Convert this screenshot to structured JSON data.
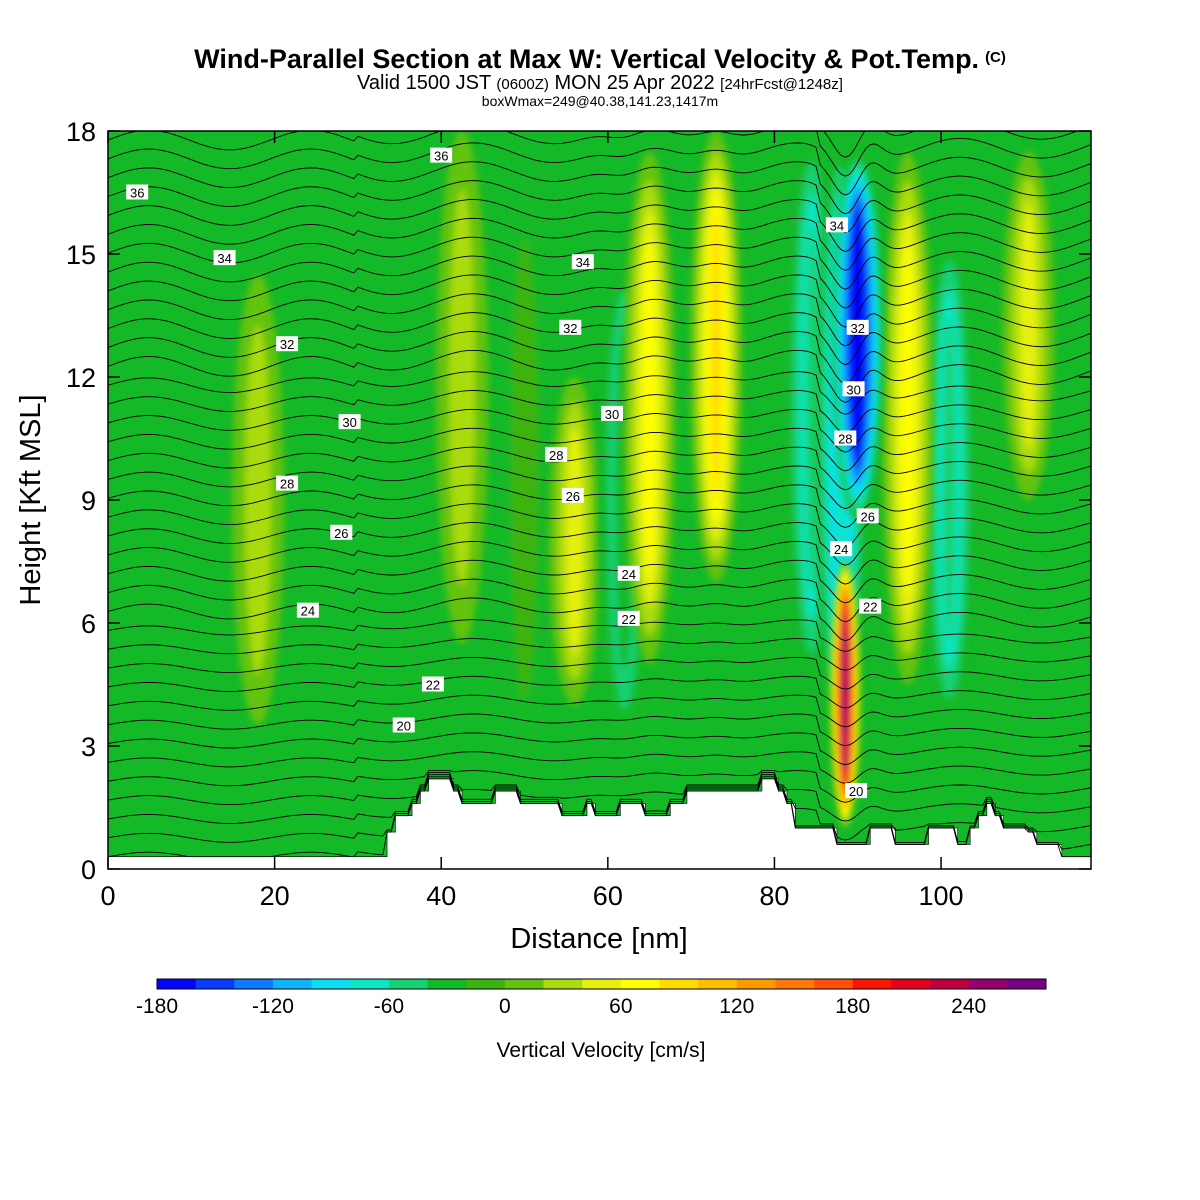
{
  "header": {
    "title": "Wind-Parallel Section at Max W: Vertical Velocity & Pot.Temp.",
    "title_mark": "(C)",
    "valid_main": "Valid 1500 JST",
    "valid_utc": "(0600Z)",
    "valid_date": "MON 25 Apr 2022",
    "forecast": "[24hrFcst@1248z]",
    "boxw": "boxWmax=249@40.38,141.23,1417m"
  },
  "colorbar": {
    "label": "Vertical Velocity [cm/s]",
    "ticks": [
      "-180",
      "-120",
      "-60",
      "0",
      "60",
      "120",
      "180",
      "240"
    ],
    "levels": [
      -180,
      -160,
      -140,
      -120,
      -100,
      -80,
      -60,
      -40,
      -20,
      0,
      20,
      40,
      60,
      80,
      100,
      120,
      140,
      160,
      180,
      200,
      220,
      240,
      260,
      280
    ],
    "colors": [
      "#0505ff",
      "#0a3cff",
      "#0f78ff",
      "#0fb4ff",
      "#0fdcf5",
      "#0fe6c3",
      "#14d273",
      "#14b928",
      "#3cb40f",
      "#64c30f",
      "#aadc0f",
      "#e6f00f",
      "#ffff00",
      "#ffdc00",
      "#ffbe00",
      "#ff9b00",
      "#ff780a",
      "#ff5005",
      "#ff1400",
      "#e6001e",
      "#be003c",
      "#96006e",
      "#780087"
    ]
  },
  "chart_data": {
    "type": "heatmap",
    "title": "Wind-Parallel Section at Max W: Vertical Velocity & Pot.Temp.",
    "xlabel": "Distance [nm]",
    "ylabel": "Height [Kft MSL]",
    "xlim": [
      0,
      118
    ],
    "ylim": [
      0,
      18
    ],
    "xticks": [
      "0",
      "20",
      "40",
      "60",
      "80",
      "100"
    ],
    "yticks": [
      "0",
      "3",
      "6",
      "9",
      "12",
      "15",
      "18"
    ],
    "fill_variable": "Vertical Velocity [cm/s]",
    "contour_variable": "Potential temperature",
    "contour_levels": [
      20,
      22,
      24,
      26,
      28,
      30,
      32,
      34,
      36
    ],
    "max_w": 249,
    "w_features": [
      {
        "x": 88.5,
        "w": 249,
        "base": 1.0,
        "top": 7.5,
        "kind": "updraft"
      },
      {
        "x": 90.0,
        "w": -180,
        "base": 8.5,
        "top": 17.5,
        "kind": "downdraft"
      },
      {
        "x": 88.0,
        "w": -80,
        "base": 3.0,
        "top": 17.8,
        "kind": "downdraft"
      },
      {
        "x": 84.5,
        "w": -60,
        "base": 4.5,
        "top": 18,
        "kind": "downdraft"
      },
      {
        "x": 101.0,
        "w": -60,
        "base": 3.5,
        "top": 15.5,
        "kind": "downdraft"
      },
      {
        "x": 73.0,
        "w": 80,
        "base": 7.0,
        "top": 18,
        "kind": "updraft"
      },
      {
        "x": 65.0,
        "w": 60,
        "base": 5.0,
        "top": 17.5,
        "kind": "updraft"
      },
      {
        "x": 96.0,
        "w": 60,
        "base": 4.5,
        "top": 17.5,
        "kind": "updraft"
      },
      {
        "x": 56.0,
        "w": 40,
        "base": 4.0,
        "top": 12.0,
        "kind": "updraft"
      },
      {
        "x": 62.0,
        "w": -40,
        "base": 3.0,
        "top": 15.0,
        "kind": "downdraft"
      },
      {
        "x": 110.5,
        "w": 40,
        "base": 9.0,
        "top": 17.5,
        "kind": "updraft"
      },
      {
        "x": 107.0,
        "w": -25,
        "base": 2.0,
        "top": 16.0,
        "kind": "downdraft"
      },
      {
        "x": 42.5,
        "w": 20,
        "base": 5.5,
        "top": 18,
        "kind": "updraft"
      },
      {
        "x": 18.0,
        "w": 20,
        "base": 3.5,
        "top": 14.5,
        "kind": "updraft"
      },
      {
        "x": 50.0,
        "w": -20,
        "base": 2.5,
        "top": 17.0,
        "kind": "downdraft"
      }
    ],
    "contour_labels": [
      {
        "value": 36,
        "x": 3.5,
        "y": 16.5
      },
      {
        "value": 36,
        "x": 40.0,
        "y": 17.4
      },
      {
        "value": 34,
        "x": 14.0,
        "y": 14.9
      },
      {
        "value": 34,
        "x": 57.0,
        "y": 14.8
      },
      {
        "value": 34,
        "x": 87.5,
        "y": 15.7
      },
      {
        "value": 32,
        "x": 21.5,
        "y": 12.8
      },
      {
        "value": 32,
        "x": 55.5,
        "y": 13.2
      },
      {
        "value": 32,
        "x": 90.0,
        "y": 13.2
      },
      {
        "value": 30,
        "x": 29.0,
        "y": 10.9
      },
      {
        "value": 30,
        "x": 60.5,
        "y": 11.1
      },
      {
        "value": 30,
        "x": 89.5,
        "y": 11.7
      },
      {
        "value": 28,
        "x": 21.5,
        "y": 9.4
      },
      {
        "value": 28,
        "x": 53.8,
        "y": 10.1
      },
      {
        "value": 28,
        "x": 88.5,
        "y": 10.5
      },
      {
        "value": 26,
        "x": 28.0,
        "y": 8.2
      },
      {
        "value": 26,
        "x": 55.8,
        "y": 9.1
      },
      {
        "value": 26,
        "x": 91.2,
        "y": 8.6
      },
      {
        "value": 24,
        "x": 24.0,
        "y": 6.3
      },
      {
        "value": 24,
        "x": 62.5,
        "y": 7.2
      },
      {
        "value": 24,
        "x": 88.0,
        "y": 7.8
      },
      {
        "value": 22,
        "x": 39.0,
        "y": 4.5
      },
      {
        "value": 22,
        "x": 62.5,
        "y": 6.1
      },
      {
        "value": 22,
        "x": 91.5,
        "y": 6.4
      },
      {
        "value": 20,
        "x": 35.5,
        "y": 3.5
      },
      {
        "value": 20,
        "x": 89.8,
        "y": 1.9
      }
    ],
    "terrain": {
      "x": [
        0,
        32.5,
        33.5,
        34.5,
        36.5,
        37.5,
        38.5,
        40.5,
        41.5,
        42.5,
        45.5,
        46.5,
        48.5,
        49.5,
        53.5,
        54.5,
        55.5,
        57.5,
        58.5,
        60.5,
        61.5,
        63.5,
        64.5,
        65.5,
        67.5,
        68.5,
        69.5,
        73.5,
        75.5,
        77.5,
        78.5,
        79.5,
        80.5,
        81.5,
        82.5,
        87.5,
        87.8,
        89.2,
        90.5,
        91.5,
        93.0,
        94.5,
        98.5,
        100.5,
        102.0,
        103.5,
        104.5,
        105.5,
        106.5,
        107.5,
        109.5,
        110.5,
        111.5,
        112.5,
        114.5,
        115.5,
        118
      ],
      "top": [
        0.3,
        0.3,
        0.9,
        1.3,
        1.6,
        1.9,
        2.2,
        2.2,
        1.9,
        1.6,
        1.6,
        1.9,
        1.9,
        1.6,
        1.6,
        1.3,
        1.3,
        1.6,
        1.3,
        1.3,
        1.6,
        1.6,
        1.3,
        1.3,
        1.6,
        1.6,
        1.9,
        1.9,
        1.9,
        1.9,
        2.2,
        2.2,
        1.9,
        1.6,
        1.0,
        0.6,
        0.6,
        0.6,
        0.6,
        1.0,
        1.0,
        0.6,
        1.0,
        1.0,
        0.6,
        1.0,
        1.3,
        1.6,
        1.3,
        1.0,
        1.0,
        0.9,
        0.6,
        0.6,
        0.3,
        0.3,
        0.3
      ]
    }
  }
}
